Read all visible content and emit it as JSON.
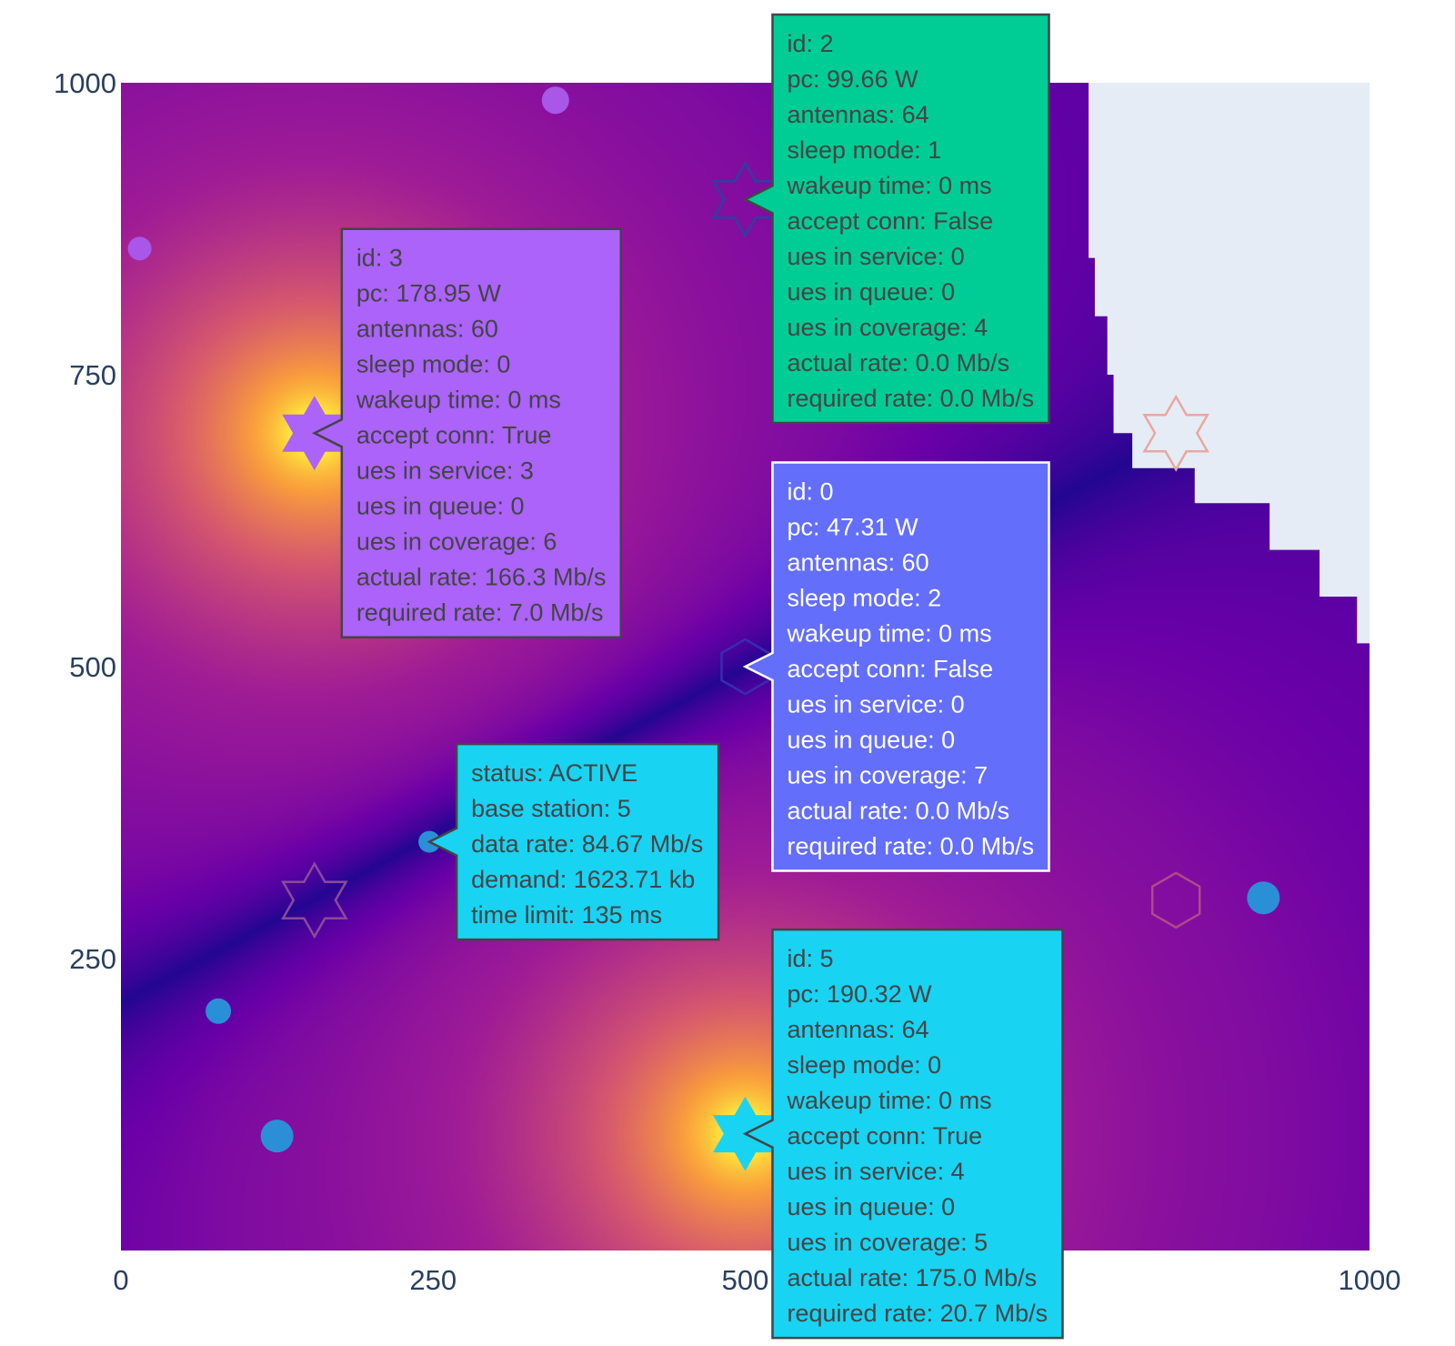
{
  "chart_data": {
    "type": "scatter",
    "title": "",
    "xlabel": "",
    "ylabel": "",
    "xlim": [
      0,
      1000
    ],
    "ylim": [
      0,
      1000
    ],
    "x_ticks": [
      "0",
      "250",
      "500",
      "1000"
    ],
    "y_ticks": [
      "250",
      "500",
      "750",
      "1000"
    ],
    "colors": {
      "heat_low": "#1d078f",
      "heat_mid": "#8a0ca8",
      "heat_hot": "#e0627a",
      "heat_peak": "#fde03a",
      "plot_bg": "#e5ecf6",
      "ue": "#2b8fd8",
      "tip_purple": "#ab63fa",
      "tip_green": "#00cc96",
      "tip_blue": "#636efa",
      "tip_cyan": "#19d3f3"
    },
    "heatmap": {
      "hotspots": [
        {
          "x": 155,
          "y": 700,
          "strength": 1.0,
          "radius": 200
        },
        {
          "x": 500,
          "y": 100,
          "strength": 1.0,
          "radius": 200
        }
      ],
      "blank_region_edge": [
        {
          "x": 775,
          "y": 850
        },
        {
          "x": 780,
          "y": 800
        },
        {
          "x": 790,
          "y": 750
        },
        {
          "x": 795,
          "y": 700
        },
        {
          "x": 810,
          "y": 670
        },
        {
          "x": 860,
          "y": 640
        },
        {
          "x": 920,
          "y": 600
        },
        {
          "x": 960,
          "y": 560
        },
        {
          "x": 990,
          "y": 520
        },
        {
          "x": 1000,
          "y": 512
        }
      ]
    },
    "base_stations": [
      {
        "id": 0,
        "x": 500,
        "y": 500,
        "shape": "hexagon",
        "color": "#3a2bb0",
        "filled": false
      },
      {
        "id": 1,
        "x": 845,
        "y": 300,
        "shape": "hexagon",
        "color": "#b04a8a",
        "filled": false
      },
      {
        "id": 2,
        "x": 500,
        "y": 900,
        "shape": "hexagram",
        "color": "#2e3fa0",
        "filled": false
      },
      {
        "id": 3,
        "x": 155,
        "y": 700,
        "shape": "hexagram",
        "color": "#ab63fa",
        "filled": true
      },
      {
        "id": 4,
        "x": 155,
        "y": 300,
        "shape": "hexagram",
        "color": "#8b4a9a",
        "filled": false
      },
      {
        "id": 5,
        "x": 500,
        "y": 100,
        "shape": "hexagram",
        "color": "#19d3f3",
        "filled": true
      },
      {
        "id": 6,
        "x": 845,
        "y": 700,
        "shape": "hexagram",
        "color": "#e8a8a0",
        "filled": false
      }
    ],
    "ues": [
      {
        "x": 348,
        "y": 985,
        "size": 15,
        "color": "#a857e8"
      },
      {
        "x": 15,
        "y": 858,
        "size": 13,
        "color": "#a857e8"
      },
      {
        "x": 247,
        "y": 350,
        "size": 12,
        "color": "#2b8fd8"
      },
      {
        "x": 78,
        "y": 205,
        "size": 14,
        "color": "#2b8fd8"
      },
      {
        "x": 125,
        "y": 98,
        "size": 18,
        "color": "#2b8fd8"
      },
      {
        "x": 915,
        "y": 302,
        "size": 18,
        "color": "#2b8fd8"
      }
    ],
    "tooltips": [
      {
        "target": {
          "x": 500,
          "y": 900
        },
        "color": "#00cc96",
        "text_color": "#444444",
        "border_color": "#444444",
        "lines": [
          "id: 2",
          "pc: 99.66 W",
          "antennas: 64",
          "sleep mode: 1",
          "wakeup time: 0 ms",
          "accept conn: False",
          "ues in service: 0",
          "ues in queue: 0",
          "ues in coverage: 4",
          "actual rate: 0.0 Mb/s",
          "required rate: 0.0 Mb/s"
        ]
      },
      {
        "target": {
          "x": 155,
          "y": 700
        },
        "color": "#ab63fa",
        "text_color": "#444444",
        "border_color": "#444444",
        "lines": [
          "id: 3",
          "pc: 178.95 W",
          "antennas: 60",
          "sleep mode: 0",
          "wakeup time: 0 ms",
          "accept conn: True",
          "ues in service: 3",
          "ues in queue: 0",
          "ues in coverage: 6",
          "actual rate: 166.3 Mb/s",
          "required rate: 7.0 Mb/s"
        ]
      },
      {
        "target": {
          "x": 500,
          "y": 500
        },
        "color": "#636efa",
        "text_color": "#ffffff",
        "border_color": "#ffffff",
        "lines": [
          "id: 0",
          "pc: 47.31 W",
          "antennas: 60",
          "sleep mode: 2",
          "wakeup time: 0 ms",
          "accept conn: False",
          "ues in service: 0",
          "ues in queue: 0",
          "ues in coverage: 7",
          "actual rate: 0.0 Mb/s",
          "required rate: 0.0 Mb/s"
        ]
      },
      {
        "target": {
          "x": 247,
          "y": 350
        },
        "color": "#19d3f3",
        "text_color": "#444444",
        "border_color": "#444444",
        "lines": [
          "status: ACTIVE",
          "base station: 5",
          "data rate: 84.67 Mb/s",
          "demand: 1623.71 kb",
          "time limit: 135 ms"
        ]
      },
      {
        "target": {
          "x": 500,
          "y": 100
        },
        "color": "#19d3f3",
        "text_color": "#444444",
        "border_color": "#444444",
        "lines": [
          "id: 5",
          "pc: 190.32 W",
          "antennas: 64",
          "sleep mode: 0",
          "wakeup time: 0 ms",
          "accept conn: True",
          "ues in service: 4",
          "ues in queue: 0",
          "ues in coverage: 5",
          "actual rate: 175.0 Mb/s",
          "required rate: 20.7 Mb/s"
        ]
      }
    ]
  }
}
